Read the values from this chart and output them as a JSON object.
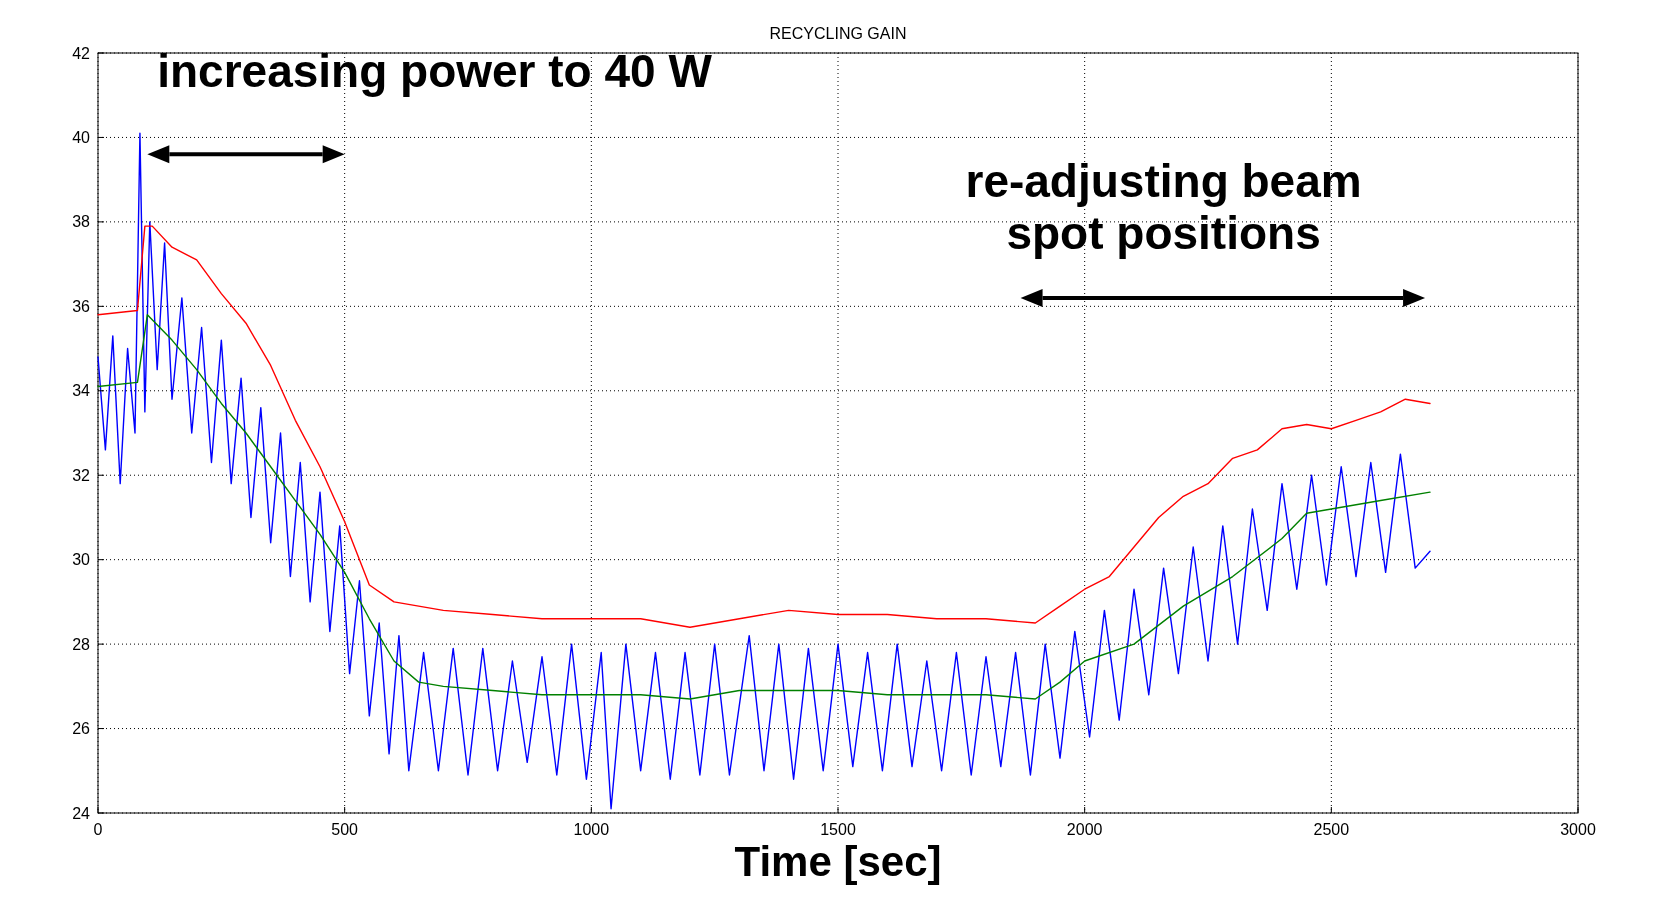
{
  "chart_data": {
    "type": "line",
    "title": "RECYCLING GAIN",
    "xlabel": "Time [sec]",
    "annotations": [
      "increasing power to 40 W",
      "re-adjusting beam spot positions"
    ],
    "xlim": [
      0,
      3000
    ],
    "xticks": [
      0,
      500,
      1000,
      1500,
      2000,
      2500,
      3000
    ],
    "ylim": [
      24,
      42
    ],
    "yticks": [
      24,
      26,
      28,
      30,
      32,
      34,
      36,
      38,
      40,
      42
    ],
    "grid": true,
    "line_style": "solid",
    "marker": "none",
    "series": [
      {
        "color": "#0000ff",
        "x": [
          0,
          15,
          30,
          45,
          60,
          75,
          85,
          95,
          105,
          120,
          135,
          150,
          170,
          190,
          210,
          230,
          250,
          270,
          290,
          310,
          330,
          350,
          370,
          390,
          410,
          430,
          450,
          470,
          490,
          510,
          530,
          550,
          570,
          590,
          610,
          630,
          660,
          690,
          720,
          750,
          780,
          810,
          840,
          870,
          900,
          930,
          960,
          990,
          1020,
          1040,
          1070,
          1100,
          1130,
          1160,
          1190,
          1220,
          1250,
          1280,
          1320,
          1350,
          1380,
          1410,
          1440,
          1470,
          1500,
          1530,
          1560,
          1590,
          1620,
          1650,
          1680,
          1710,
          1740,
          1770,
          1800,
          1830,
          1860,
          1890,
          1920,
          1950,
          1980,
          2010,
          2040,
          2070,
          2100,
          2130,
          2160,
          2190,
          2220,
          2250,
          2280,
          2310,
          2340,
          2370,
          2400,
          2430,
          2460,
          2490,
          2520,
          2550,
          2580,
          2610,
          2640,
          2670,
          2700
        ],
        "values": [
          34.8,
          32.6,
          35.3,
          31.8,
          35.0,
          33.0,
          40.1,
          33.5,
          38.0,
          34.5,
          37.5,
          33.8,
          36.2,
          33.0,
          35.5,
          32.3,
          35.2,
          31.8,
          34.3,
          31.0,
          33.6,
          30.4,
          33.0,
          29.6,
          32.3,
          29.0,
          31.6,
          28.3,
          30.8,
          27.3,
          29.5,
          26.3,
          28.5,
          25.4,
          28.2,
          25.0,
          27.8,
          25.0,
          27.9,
          24.9,
          27.9,
          25.0,
          27.6,
          25.2,
          27.7,
          24.9,
          28.0,
          24.8,
          27.8,
          24.1,
          28.0,
          25.0,
          27.8,
          24.8,
          27.8,
          24.9,
          28.0,
          24.9,
          28.2,
          25.0,
          28.0,
          24.8,
          27.9,
          25.0,
          28.0,
          25.1,
          27.8,
          25.0,
          28.0,
          25.1,
          27.6,
          25.0,
          27.8,
          24.9,
          27.7,
          25.1,
          27.8,
          24.9,
          28.0,
          25.3,
          28.3,
          25.8,
          28.8,
          26.2,
          29.3,
          26.8,
          29.8,
          27.3,
          30.3,
          27.6,
          30.8,
          28.0,
          31.2,
          28.8,
          31.8,
          29.3,
          32.0,
          29.4,
          32.2,
          29.6,
          32.3,
          29.7,
          32.5,
          29.8,
          30.2
        ]
      },
      {
        "color": "#008000",
        "x": [
          0,
          80,
          100,
          150,
          200,
          250,
          300,
          350,
          400,
          450,
          500,
          550,
          600,
          650,
          700,
          800,
          900,
          1000,
          1100,
          1200,
          1300,
          1400,
          1500,
          1600,
          1700,
          1800,
          1900,
          1950,
          2000,
          2100,
          2200,
          2300,
          2400,
          2450,
          2500,
          2600,
          2700
        ],
        "values": [
          34.1,
          34.2,
          35.8,
          35.2,
          34.5,
          33.7,
          33.0,
          32.2,
          31.4,
          30.6,
          29.7,
          28.6,
          27.6,
          27.1,
          27.0,
          26.9,
          26.8,
          26.8,
          26.8,
          26.7,
          26.9,
          26.9,
          26.9,
          26.8,
          26.8,
          26.8,
          26.7,
          27.1,
          27.6,
          28.0,
          28.9,
          29.6,
          30.5,
          31.1,
          31.2,
          31.4,
          31.6
        ]
      },
      {
        "color": "#ff0000",
        "x": [
          0,
          80,
          95,
          110,
          150,
          200,
          250,
          300,
          350,
          400,
          450,
          500,
          550,
          600,
          700,
          800,
          900,
          1000,
          1100,
          1200,
          1300,
          1400,
          1500,
          1600,
          1700,
          1800,
          1900,
          1950,
          2000,
          2050,
          2100,
          2150,
          2200,
          2250,
          2300,
          2350,
          2400,
          2450,
          2500,
          2550,
          2600,
          2650,
          2700
        ],
        "values": [
          35.8,
          35.9,
          37.9,
          37.9,
          37.4,
          37.1,
          36.3,
          35.6,
          34.6,
          33.3,
          32.2,
          30.9,
          29.4,
          29.0,
          28.8,
          28.7,
          28.6,
          28.6,
          28.6,
          28.4,
          28.6,
          28.8,
          28.7,
          28.7,
          28.6,
          28.6,
          28.5,
          28.9,
          29.3,
          29.6,
          30.3,
          31.0,
          31.5,
          31.8,
          32.4,
          32.6,
          33.1,
          33.2,
          33.1,
          33.3,
          33.5,
          33.8,
          33.7
        ]
      }
    ]
  }
}
